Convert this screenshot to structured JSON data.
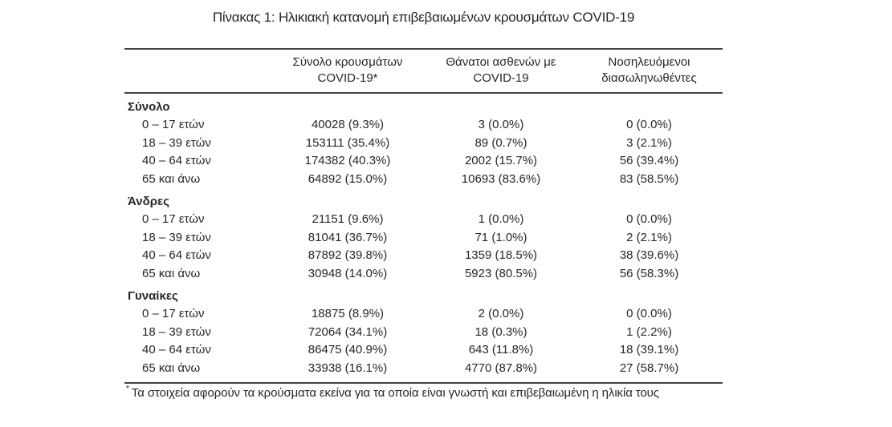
{
  "title": "Πίνακας 1: Ηλικιακή κατανομή επιβεβαιωμένων κρουσμάτων COVID-19",
  "table": {
    "columns": [
      {
        "line1": "Σύνολο κρουσμάτων",
        "line2": "COVID-19*"
      },
      {
        "line1": "Θάνατοι ασθενών με",
        "line2": "COVID-19"
      },
      {
        "line1": "Νοσηλευόμενοι",
        "line2": "διασωληνωθέντες"
      }
    ],
    "sections": [
      {
        "label": "Σύνολο",
        "rows": [
          {
            "age": "0 – 17 ετών",
            "cases": "40028 (9.3%)",
            "deaths": "3 (0.0%)",
            "intubated": "0 (0.0%)"
          },
          {
            "age": "18 – 39 ετών",
            "cases": "153111 (35.4%)",
            "deaths": "89 (0.7%)",
            "intubated": "3 (2.1%)"
          },
          {
            "age": "40 – 64 ετών",
            "cases": "174382 (40.3%)",
            "deaths": "2002 (15.7%)",
            "intubated": "56 (39.4%)"
          },
          {
            "age": "65 και άνω",
            "cases": "64892 (15.0%)",
            "deaths": "10693 (83.6%)",
            "intubated": "83 (58.5%)"
          }
        ]
      },
      {
        "label": "Άνδρες",
        "rows": [
          {
            "age": "0 – 17 ετών",
            "cases": "21151 (9.6%)",
            "deaths": "1 (0.0%)",
            "intubated": "0 (0.0%)"
          },
          {
            "age": "18 – 39 ετών",
            "cases": "81041 (36.7%)",
            "deaths": "71 (1.0%)",
            "intubated": "2 (2.1%)"
          },
          {
            "age": "40 – 64 ετών",
            "cases": "87892 (39.8%)",
            "deaths": "1359 (18.5%)",
            "intubated": "38 (39.6%)"
          },
          {
            "age": "65 και άνω",
            "cases": "30948 (14.0%)",
            "deaths": "5923 (80.5%)",
            "intubated": "56 (58.3%)"
          }
        ]
      },
      {
        "label": "Γυναίκες",
        "rows": [
          {
            "age": "0 – 17 ετών",
            "cases": "18875 (8.9%)",
            "deaths": "2 (0.0%)",
            "intubated": "0 (0.0%)"
          },
          {
            "age": "18 – 39 ετών",
            "cases": "72064 (34.1%)",
            "deaths": "18 (0.3%)",
            "intubated": "1 (2.2%)"
          },
          {
            "age": "40 – 64 ετών",
            "cases": "86475 (40.9%)",
            "deaths": "643 (11.8%)",
            "intubated": "18 (39.1%)"
          },
          {
            "age": "65 και άνω",
            "cases": "33938 (16.1%)",
            "deaths": "4770 (87.8%)",
            "intubated": "27 (58.7%)"
          }
        ]
      }
    ]
  },
  "footnote": {
    "marker": "*",
    "text": "Τα στοιχεία αφορούν τα κρούσματα εκείνα για τα οποία είναι γνωστή και επιβεβαιωμένη η ηλικία τους"
  },
  "colors": {
    "text": "#24272b",
    "rule": "#3f4247"
  }
}
